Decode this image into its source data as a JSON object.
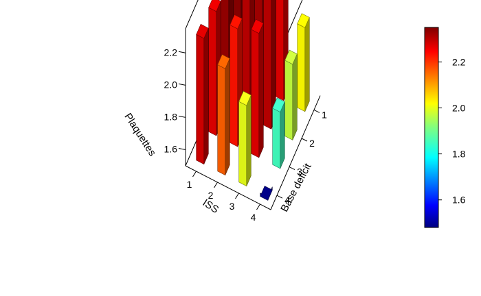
{
  "chart_data": {
    "type": "bar3d",
    "title": "",
    "x_axis": {
      "label": "ISS",
      "ticks": [
        "1",
        "2",
        "3",
        "4"
      ]
    },
    "y_axis": {
      "label": "Base deficit",
      "ticks": [
        "1",
        "2",
        "3",
        "4"
      ]
    },
    "z_axis": {
      "label": "Plaquettes",
      "ticks": [
        "1.6",
        "1.8",
        "2.0",
        "2.2"
      ],
      "range": [
        1.5,
        2.35
      ]
    },
    "colorbar": {
      "ticks": [
        "1.6",
        "1.8",
        "2.0",
        "2.2"
      ],
      "range": [
        1.48,
        2.35
      ],
      "palette": "jet"
    },
    "bars": [
      {
        "iss": 1,
        "base_deficit": 1,
        "value": 2.34
      },
      {
        "iss": 1,
        "base_deficit": 2,
        "value": 2.33
      },
      {
        "iss": 1,
        "base_deficit": 3,
        "value": 2.27
      },
      {
        "iss": 1,
        "base_deficit": 4,
        "value": 2.28
      },
      {
        "iss": 2,
        "base_deficit": 1,
        "value": 2.32
      },
      {
        "iss": 2,
        "base_deficit": 2,
        "value": 2.3
      },
      {
        "iss": 2,
        "base_deficit": 3,
        "value": 2.23
      },
      {
        "iss": 2,
        "base_deficit": 4,
        "value": 2.16
      },
      {
        "iss": 3,
        "base_deficit": 1,
        "value": 2.27
      },
      {
        "iss": 3,
        "base_deficit": 2,
        "value": 2.3
      },
      {
        "iss": 3,
        "base_deficit": 3,
        "value": 2.27
      },
      {
        "iss": 3,
        "base_deficit": 4,
        "value": 2.0
      },
      {
        "iss": 4,
        "base_deficit": 1,
        "value": 2.02
      },
      {
        "iss": 4,
        "base_deficit": 2,
        "value": 1.97
      },
      {
        "iss": 4,
        "base_deficit": 3,
        "value": 1.85
      },
      {
        "iss": 4,
        "base_deficit": 4,
        "value": 1.48
      }
    ]
  }
}
